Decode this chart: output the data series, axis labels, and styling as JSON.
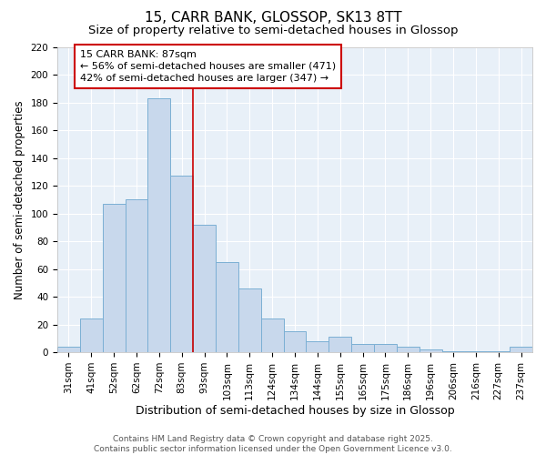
{
  "title1": "15, CARR BANK, GLOSSOP, SK13 8TT",
  "title2": "Size of property relative to semi-detached houses in Glossop",
  "xlabel": "Distribution of semi-detached houses by size in Glossop",
  "ylabel": "Number of semi-detached properties",
  "categories": [
    "31sqm",
    "41sqm",
    "52sqm",
    "62sqm",
    "72sqm",
    "83sqm",
    "93sqm",
    "103sqm",
    "113sqm",
    "124sqm",
    "134sqm",
    "144sqm",
    "155sqm",
    "165sqm",
    "175sqm",
    "186sqm",
    "196sqm",
    "206sqm",
    "216sqm",
    "227sqm",
    "237sqm"
  ],
  "values": [
    4,
    24,
    107,
    110,
    183,
    127,
    92,
    65,
    46,
    24,
    15,
    8,
    11,
    6,
    6,
    4,
    2,
    1,
    1,
    1,
    4
  ],
  "bar_color": "#c8d8ec",
  "bar_edge_color": "#7bafd4",
  "background_color": "#e8f0f8",
  "annotation_line1": "15 CARR BANK: 87sqm",
  "annotation_line2": "← 56% of semi-detached houses are smaller (471)",
  "annotation_line3": "42% of semi-detached houses are larger (347) →",
  "annotation_box_color": "#cc0000",
  "vline_color": "#cc0000",
  "property_bar_index": 5,
  "ylim": [
    0,
    220
  ],
  "yticks": [
    0,
    20,
    40,
    60,
    80,
    100,
    120,
    140,
    160,
    180,
    200,
    220
  ],
  "footer_line1": "Contains HM Land Registry data © Crown copyright and database right 2025.",
  "footer_line2": "Contains public sector information licensed under the Open Government Licence v3.0.",
  "title1_fontsize": 11,
  "title2_fontsize": 9.5,
  "xlabel_fontsize": 9,
  "ylabel_fontsize": 8.5,
  "tick_fontsize": 7.5,
  "footer_fontsize": 6.5,
  "annotation_fontsize": 8
}
